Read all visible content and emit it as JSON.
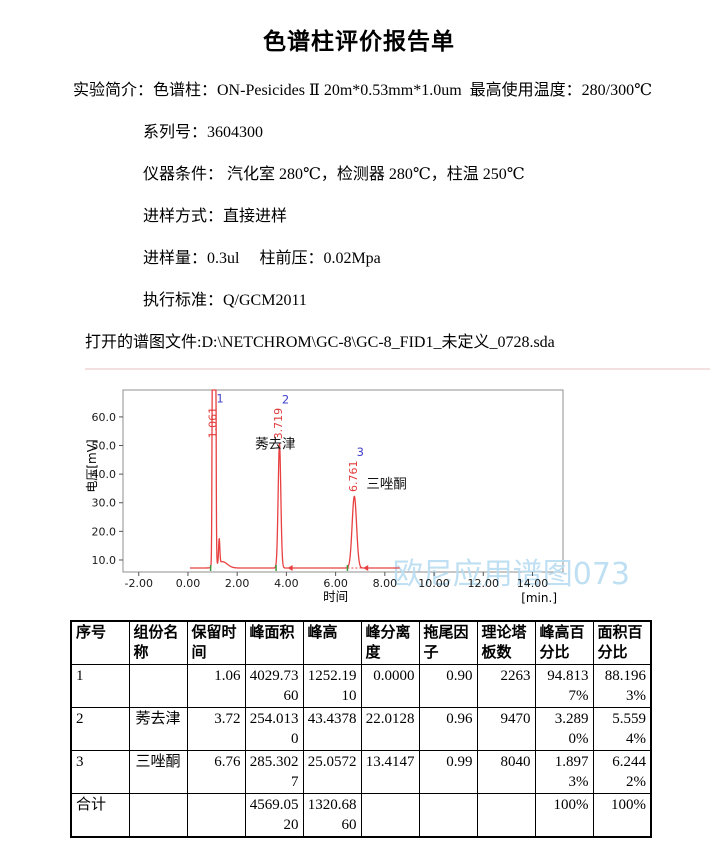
{
  "title": "色谱柱评价报告单",
  "info_lines": [
    {
      "indent": 0,
      "text": "实验简介：色谱柱：ON-Pesicides Ⅱ 20m*0.53mm*1.0um  最高使用温度：280/300℃"
    },
    {
      "indent": 1,
      "text": "系列号：3604300"
    },
    {
      "indent": 1,
      "text": "仪器条件： 汽化室 280℃，检测器 280℃，柱温 250℃"
    },
    {
      "indent": 1,
      "text": "进样方式：直接进样"
    },
    {
      "indent": 1,
      "text": "进样量：0.3ul     柱前压：0.02Mpa"
    },
    {
      "indent": 1,
      "text": "执行标准：Q/GCM2011"
    },
    {
      "indent": 2,
      "text": "打开的谱图文件:D:\\NETCHROM\\GC-8\\GC-8_FID1_未定义_0728.sda"
    }
  ],
  "chart_data": {
    "type": "line",
    "xlabel": "时间",
    "xunit": "[min.]",
    "ylabel": "电压[mV]",
    "xlim": [
      -2.64,
      15.24
    ],
    "ylim": [
      5.8,
      69.4
    ],
    "xticks": [
      -2,
      0,
      2,
      4,
      6,
      8,
      10,
      12,
      14
    ],
    "yticks": [
      10,
      20,
      30,
      40,
      50,
      60
    ],
    "baseline_mv": 7.2,
    "trace_range": [
      0.08,
      8.6
    ],
    "peaks": [
      {
        "number": "1",
        "rt": 1.061,
        "rt_label": "1.061",
        "height": 1252.191,
        "sigma": 0.033
      },
      {
        "number": "2",
        "rt": 3.719,
        "rt_label": "3.719",
        "height": 43.438,
        "sigma": 0.054
      },
      {
        "number": "3",
        "rt": 6.761,
        "rt_label": "6.761",
        "height": 25.057,
        "sigma": 0.09
      }
    ],
    "extras": [
      {
        "rt": 1.27,
        "height": 8.5,
        "sigma": 0.025
      },
      {
        "rt": 1.4,
        "height": 2.2,
        "sigma": 0.2
      }
    ],
    "annotations": [
      {
        "text": "莠去津",
        "x": 3.55,
        "y": 49,
        "anchor": "middle"
      },
      {
        "text": "三唑酮",
        "x": 7.25,
        "y": 35,
        "anchor": "start"
      }
    ],
    "markers": {
      "green_ticks": [
        0.92,
        3.58,
        6.48
      ],
      "red_arrows": [
        4.05,
        7.12
      ],
      "dotted_span": [
        6.48,
        7.12
      ]
    },
    "watermark": "欧尼应用谱图073",
    "colors": {
      "trace": "#e84040",
      "rt_label": "#e03a3a",
      "peak_number": "#4343cc",
      "marker_green": "#3c9a3c",
      "watermark": "#b9dcf1",
      "plot_border": "#8f8f8f",
      "tick_text": "#1a1a1a"
    }
  },
  "table": {
    "headers": [
      "序号",
      "组份名称",
      "保留时间",
      "峰面积",
      "峰高",
      "峰分离度",
      "拖尾因子",
      "理论塔板数",
      "峰高百分比",
      "面积百分比"
    ],
    "rows": [
      [
        "1",
        "",
        "1.06",
        "4029.7360",
        "1252.1910",
        "0.0000",
        "0.90",
        "2263",
        "94.8137%",
        "88.1963%"
      ],
      [
        "2",
        "莠去津",
        "3.72",
        "254.0130",
        "43.4378",
        "22.0128",
        "0.96",
        "9470",
        "3.2890%",
        "5.5594%"
      ],
      [
        "3",
        "三唑酮",
        "6.76",
        "285.3027",
        "25.0572",
        "13.4147",
        "0.99",
        "8040",
        "1.8973%",
        "6.2442%"
      ],
      [
        "合计",
        "",
        "",
        "4569.0520",
        "1320.6860",
        "",
        "",
        "",
        "100%",
        "100%"
      ]
    ]
  }
}
